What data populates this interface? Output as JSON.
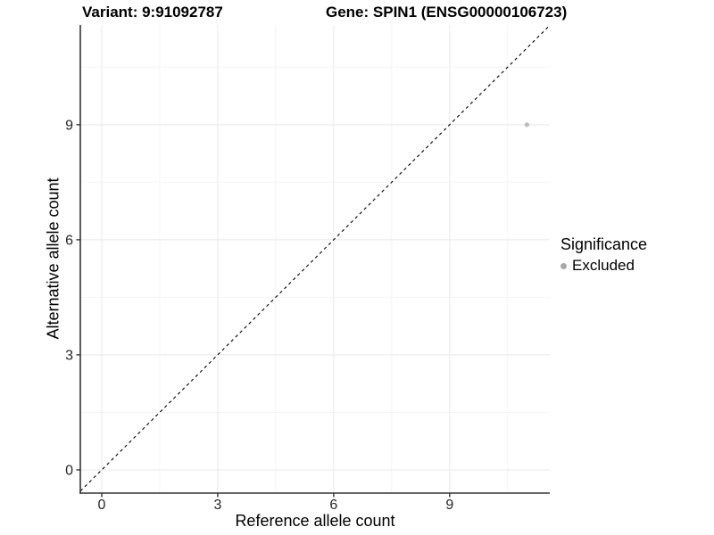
{
  "header": {
    "variant_title": "Variant: 9:91092787",
    "gene_title": "Gene: SPIN1 (ENSG00000106723)"
  },
  "chart_data": {
    "type": "scatter",
    "title_left": "Variant: 9:91092787",
    "title_right": "Gene: SPIN1 (ENSG00000106723)",
    "xlabel": "Reference allele count",
    "ylabel": "Alternative allele count",
    "xlim": [
      -0.554,
      11.59
    ],
    "ylim": [
      -0.605,
      11.6
    ],
    "xticks": [
      0,
      3,
      6,
      9
    ],
    "yticks": [
      0,
      3,
      6,
      9
    ],
    "xticks_minor": [
      1.5,
      4.5,
      7.5,
      10.5
    ],
    "yticks_minor": [
      1.5,
      4.5,
      7.5,
      10.5
    ],
    "grid": "major and minor gridlines on, white panel background",
    "abline": {
      "slope": 1,
      "intercept": 0,
      "linetype": "dashed",
      "color": "#000000"
    },
    "series": [
      {
        "name": "Excluded",
        "color": "#bcbcbc",
        "point_radius": 2.6,
        "points": [
          {
            "x": 11,
            "y": 9
          }
        ]
      }
    ],
    "legend": {
      "title": "Significance",
      "position": "right",
      "items": [
        {
          "label": "Excluded",
          "color": "#a8a8a8"
        }
      ]
    }
  },
  "colors": {
    "background": "#ffffff",
    "axis_line": "#333333",
    "tick_mark": "#333333",
    "tick_label": "#262626",
    "grid_major": "#e8e8e8",
    "grid_minor": "#f4f4f4",
    "abline": "#000000"
  }
}
